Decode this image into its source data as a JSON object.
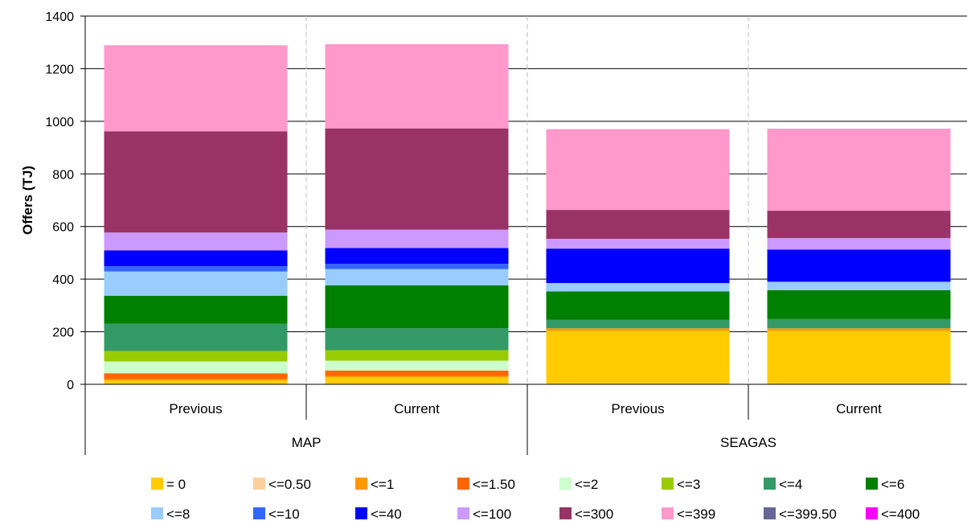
{
  "chart_data": {
    "type": "bar",
    "stacked": true,
    "xlabel": "",
    "ylabel": "Offers (TJ)",
    "ylim": [
      0,
      1400
    ],
    "yticks": [
      0,
      200,
      400,
      600,
      800,
      1000,
      1200,
      1400
    ],
    "grid": "horizontal",
    "legend_position": "bottom",
    "groups": [
      {
        "label": "MAP",
        "categories": [
          "Previous",
          "Current"
        ]
      },
      {
        "label": "SEAGAS",
        "categories": [
          "Previous",
          "Current"
        ]
      }
    ],
    "categories": [
      "Previous",
      "Current",
      "Previous",
      "Current"
    ],
    "series": [
      {
        "name": "= 0",
        "color": "#FFCC00",
        "values": [
          15,
          27,
          203,
          203
        ]
      },
      {
        "name": "<=0.50",
        "color": "#FAD09F",
        "values": [
          0,
          0,
          0,
          0
        ]
      },
      {
        "name": "<=1",
        "color": "#FF9900",
        "values": [
          5,
          5,
          10,
          10
        ]
      },
      {
        "name": "<=1.50",
        "color": "#FF6600",
        "values": [
          22,
          20,
          0,
          0
        ]
      },
      {
        "name": "<=2",
        "color": "#CCFFCC",
        "values": [
          45,
          38,
          0,
          0
        ]
      },
      {
        "name": "<=3",
        "color": "#99CC00",
        "values": [
          40,
          40,
          0,
          0
        ]
      },
      {
        "name": "<=4",
        "color": "#339966",
        "values": [
          103,
          83,
          32,
          35
        ]
      },
      {
        "name": "<=6",
        "color": "#008000",
        "values": [
          107,
          163,
          108,
          110
        ]
      },
      {
        "name": "<=8",
        "color": "#99CCFF",
        "values": [
          92,
          62,
          32,
          32
        ]
      },
      {
        "name": "<=10",
        "color": "#3366FF",
        "values": [
          20,
          20,
          0,
          0
        ]
      },
      {
        "name": "<=40",
        "color": "#0000FF",
        "values": [
          60,
          60,
          131,
          122
        ]
      },
      {
        "name": "<=100",
        "color": "#CC99FF",
        "values": [
          68,
          70,
          37,
          44
        ]
      },
      {
        "name": "<=300",
        "color": "#993366",
        "values": [
          385,
          385,
          110,
          104
        ]
      },
      {
        "name": "<=399",
        "color": "#FF99CC",
        "values": [
          327,
          320,
          307,
          312
        ]
      },
      {
        "name": "<=399.50",
        "color": "#666699",
        "values": [
          0,
          0,
          0,
          0
        ]
      },
      {
        "name": "<=400",
        "color": "#FF00FF",
        "values": [
          0,
          0,
          0,
          0
        ]
      }
    ]
  }
}
